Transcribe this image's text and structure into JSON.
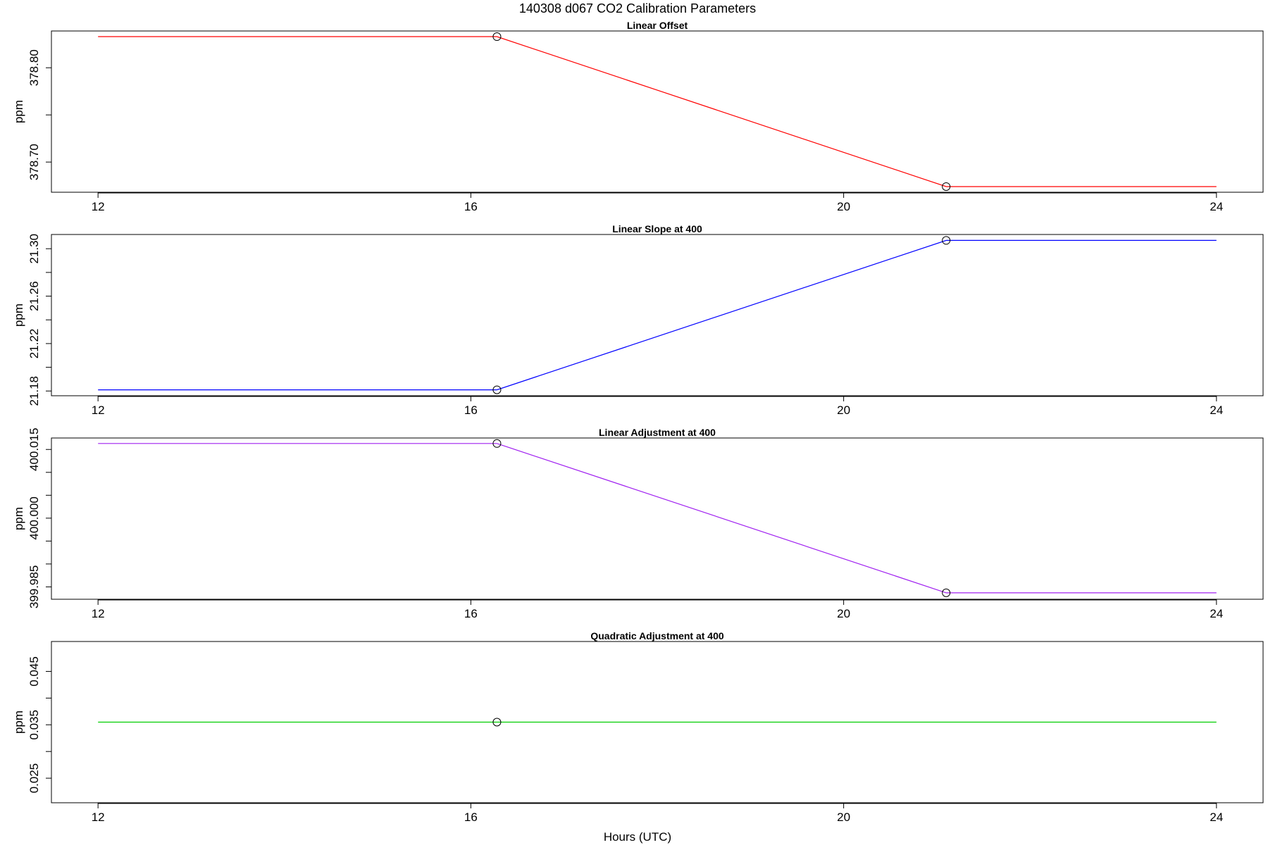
{
  "title": "140308   d067   CO2 Calibration Parameters",
  "xlabel": "Hours (UTC)",
  "chart_data": [
    {
      "type": "line",
      "title": "Linear Offset",
      "ylabel": "ppm",
      "color": "#ff0000",
      "xlim": [
        11.5,
        24.5
      ],
      "ylim": [
        378.668,
        378.839
      ],
      "xticks": [
        12,
        16,
        20,
        24
      ],
      "yticks": [
        378.7,
        378.75,
        378.8
      ],
      "ytick_labels": [
        "378.70",
        "",
        "378.80"
      ],
      "series": [
        {
          "x": [
            12,
            16.28,
            21.1,
            24
          ],
          "y": [
            378.833,
            378.833,
            378.674,
            378.674
          ],
          "markers": [
            16.28,
            21.1
          ]
        }
      ]
    },
    {
      "type": "line",
      "title": "Linear Slope at 400",
      "ylabel": "ppm",
      "color": "#0000ff",
      "xlim": [
        11.5,
        24.5
      ],
      "ylim": [
        21.176,
        21.312
      ],
      "xticks": [
        12,
        16,
        20,
        24
      ],
      "yticks": [
        21.18,
        21.2,
        21.22,
        21.24,
        21.26,
        21.28,
        21.3
      ],
      "ytick_labels": [
        "21.18",
        "",
        "21.22",
        "",
        "21.26",
        "",
        "21.30"
      ],
      "series": [
        {
          "x": [
            12,
            16.28,
            21.1,
            24
          ],
          "y": [
            21.181,
            21.181,
            21.307,
            21.307
          ],
          "markers": [
            16.28,
            21.1
          ]
        }
      ]
    },
    {
      "type": "line",
      "title": "Linear Adjustment at 400",
      "ylabel": "ppm",
      "color": "#a020f0",
      "xlim": [
        11.5,
        24.5
      ],
      "ylim": [
        399.9823,
        400.0175
      ],
      "xticks": [
        12,
        16,
        20,
        24
      ],
      "yticks": [
        399.985,
        399.99,
        399.995,
        400.0,
        400.005,
        400.01,
        400.015
      ],
      "ytick_labels": [
        "399.985",
        "",
        "",
        "400.000",
        "",
        "",
        "400.015"
      ],
      "series": [
        {
          "x": [
            12,
            16.28,
            21.1,
            24
          ],
          "y": [
            400.0163,
            400.0163,
            399.9837,
            399.9837
          ],
          "markers": [
            16.28,
            21.1
          ]
        }
      ]
    },
    {
      "type": "line",
      "title": "Quadratic Adjustment at 400",
      "ylabel": "ppm",
      "color": "#00cd00",
      "xlim": [
        11.5,
        24.5
      ],
      "ylim": [
        0.0204,
        0.0506
      ],
      "xticks": [
        12,
        16,
        20,
        24
      ],
      "yticks": [
        0.025,
        0.03,
        0.035,
        0.04,
        0.045
      ],
      "ytick_labels": [
        "0.025",
        "",
        "0.035",
        "",
        "0.045"
      ],
      "series": [
        {
          "x": [
            12,
            24
          ],
          "y": [
            0.0355,
            0.0355
          ],
          "markers": [
            16.28
          ]
        }
      ]
    }
  ]
}
